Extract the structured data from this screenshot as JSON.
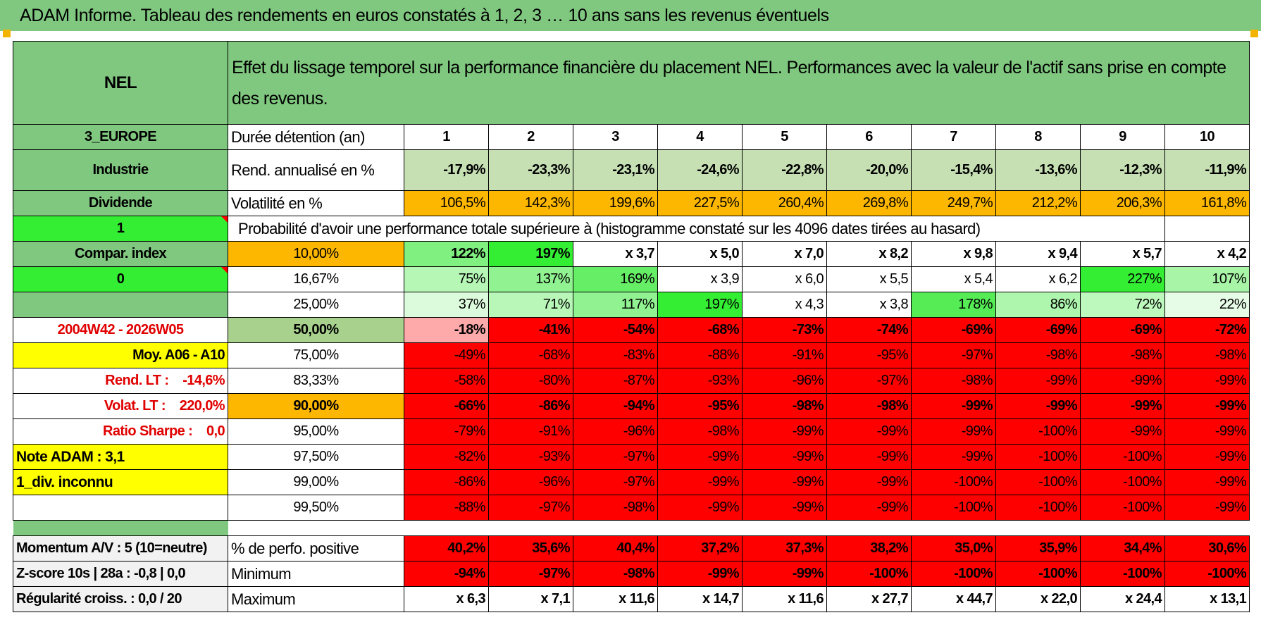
{
  "header": {
    "title": "ADAM Informe. Tableau des rendements en euros constatés à 1, 2, 3 … 10 ans sans les revenus éventuels"
  },
  "left": {
    "name": "NEL",
    "zone": "3_EUROPE",
    "sector": "Industrie",
    "type": "Dividende",
    "flag1": "1",
    "compar_label": "Compar. index",
    "flag2": "0",
    "period": "2004W42 - 2026W05",
    "moy": "Moy. A06 - A10",
    "rend_lt": "Rend. LT :    -14,6%",
    "volat_lt": "Volat. LT :    220,0%",
    "sharpe": "Ratio Sharpe :    0,0",
    "note": "Note ADAM : 3,1",
    "div": "1_div. inconnu"
  },
  "description": "Effet du lissage temporel sur la performance financière du placement NEL. Performances avec la valeur de l'actif sans prise en compte des revenus.",
  "durations": {
    "label": "Durée détention (an)",
    "values": [
      "1",
      "2",
      "3",
      "4",
      "5",
      "6",
      "7",
      "8",
      "9",
      "10"
    ]
  },
  "rend": {
    "label": "Rend. annualisé en %",
    "values": [
      "-17,9%",
      "-23,3%",
      "-23,1%",
      "-24,6%",
      "-22,8%",
      "-20,0%",
      "-15,4%",
      "-13,6%",
      "-12,3%",
      "-11,9%"
    ]
  },
  "volat": {
    "label": "Volatilité en %",
    "values": [
      "106,5%",
      "142,3%",
      "199,6%",
      "227,5%",
      "260,4%",
      "269,8%",
      "249,7%",
      "212,2%",
      "206,3%",
      "161,8%"
    ]
  },
  "proba_title": "Probabilité d'avoir une performance totale supérieure à (histogramme constaté sur les 4096 dates tirées au hasard)",
  "quantiles": [
    {
      "p": "10,00%",
      "values": [
        "122%",
        "197%",
        "x 3,7",
        "x 5,0",
        "x 7,0",
        "x 8,2",
        "x 9,8",
        "x 9,4",
        "x 5,7",
        "x 4,2"
      ]
    },
    {
      "p": "16,67%",
      "values": [
        "75%",
        "137%",
        "169%",
        "x 3,9",
        "x 6,0",
        "x 5,5",
        "x 5,4",
        "x 6,2",
        "227%",
        "107%"
      ]
    },
    {
      "p": "25,00%",
      "values": [
        "37%",
        "71%",
        "117%",
        "197%",
        "x 4,3",
        "x 3,8",
        "178%",
        "86%",
        "72%",
        "22%"
      ]
    },
    {
      "p": "50,00%",
      "values": [
        "-18%",
        "-41%",
        "-54%",
        "-68%",
        "-73%",
        "-74%",
        "-69%",
        "-69%",
        "-69%",
        "-72%"
      ]
    },
    {
      "p": "75,00%",
      "values": [
        "-49%",
        "-68%",
        "-83%",
        "-88%",
        "-91%",
        "-95%",
        "-97%",
        "-98%",
        "-98%",
        "-98%"
      ]
    },
    {
      "p": "83,33%",
      "values": [
        "-58%",
        "-80%",
        "-87%",
        "-93%",
        "-96%",
        "-97%",
        "-98%",
        "-99%",
        "-99%",
        "-99%"
      ]
    },
    {
      "p": "90,00%",
      "values": [
        "-66%",
        "-86%",
        "-94%",
        "-95%",
        "-98%",
        "-98%",
        "-99%",
        "-99%",
        "-99%",
        "-99%"
      ]
    },
    {
      "p": "95,00%",
      "values": [
        "-79%",
        "-91%",
        "-96%",
        "-98%",
        "-99%",
        "-99%",
        "-99%",
        "-100%",
        "-99%",
        "-99%"
      ]
    },
    {
      "p": "97,50%",
      "values": [
        "-82%",
        "-93%",
        "-97%",
        "-99%",
        "-99%",
        "-99%",
        "-99%",
        "-100%",
        "-100%",
        "-99%"
      ]
    },
    {
      "p": "99,00%",
      "values": [
        "-86%",
        "-96%",
        "-97%",
        "-99%",
        "-99%",
        "-99%",
        "-100%",
        "-100%",
        "-100%",
        "-99%"
      ]
    },
    {
      "p": "99,50%",
      "values": [
        "-88%",
        "-97%",
        "-98%",
        "-99%",
        "-99%",
        "-99%",
        "-100%",
        "-100%",
        "-100%",
        "-99%"
      ]
    }
  ],
  "bottom": {
    "momentum": "Momentum A/V : 5 (10=neutre)",
    "zscore": "Z-score 10s | 28a : -0,8 | 0,0",
    "regularite": "Régularité croiss. : 0,0 / 20",
    "positive": {
      "label": "% de perfo. positive",
      "values": [
        "40,2%",
        "35,6%",
        "40,4%",
        "37,2%",
        "37,3%",
        "38,2%",
        "35,0%",
        "35,9%",
        "34,4%",
        "30,6%"
      ]
    },
    "minimum": {
      "label": "Minimum",
      "values": [
        "-94%",
        "-97%",
        "-98%",
        "-99%",
        "-99%",
        "-100%",
        "-100%",
        "-100%",
        "-100%",
        "-100%"
      ]
    },
    "maximum": {
      "label": "Maximum",
      "values": [
        "x 6,3",
        "x 7,1",
        "x 11,6",
        "x 14,7",
        "x 11,6",
        "x 27,7",
        "x 44,7",
        "x 22,0",
        "x 24,4",
        "x 13,1"
      ]
    }
  },
  "colors": {
    "header_green": "#80c880",
    "lime": "#33ee33",
    "amber": "#fdb700",
    "red": "#ff0000",
    "yellow": "#ffff00"
  }
}
